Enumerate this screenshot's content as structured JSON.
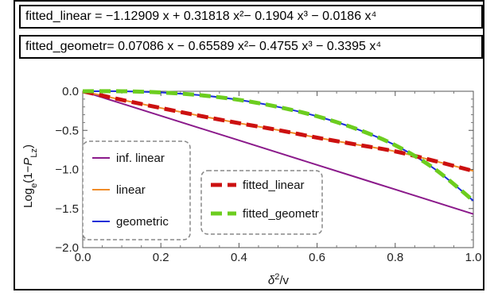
{
  "equations": {
    "linear": "fitted_linear = −1.12909 x + 0.31818 x²− 0.1904 x³ − 0.0186 x⁴",
    "geometr": "fitted_geometr= 0.07086 x − 0.65589 x²− 0.4755 x³ − 0.3395 x⁴"
  },
  "chart_data": {
    "type": "line",
    "title": "",
    "xlabel": "δ²/v",
    "ylabel": "Log_e(1−P_Lz)",
    "xlim": [
      0,
      1
    ],
    "ylim": [
      -2,
      0
    ],
    "xticks": [
      "0.0",
      "0.2",
      "0.4",
      "0.6",
      "0.8",
      "1.0"
    ],
    "yticks": [
      "0.0",
      "−0.5",
      "−1.0",
      "−1.5",
      "−2.0"
    ],
    "grid": false,
    "x": [
      0,
      0.1,
      0.2,
      0.3,
      0.4,
      0.5,
      0.6,
      0.7,
      0.8,
      0.9,
      1.0
    ],
    "series": [
      {
        "name": "inf. linear",
        "color": "#8b1a8b",
        "style": "solid",
        "values": [
          0,
          -0.157,
          -0.314,
          -0.471,
          -0.628,
          -0.785,
          -0.942,
          -1.099,
          -1.256,
          -1.413,
          -1.57
        ]
      },
      {
        "name": "linear",
        "color": "#f08c28",
        "style": "solid",
        "values": [
          0,
          -0.11,
          -0.214,
          -0.314,
          -0.408,
          -0.496,
          -0.593,
          -0.681,
          -0.769,
          -0.89,
          -1.02
        ]
      },
      {
        "name": "geometric",
        "color": "#1a2fd8",
        "style": "solid",
        "values": [
          0,
          0.0006,
          -0.015,
          -0.05,
          -0.11,
          -0.2,
          -0.32,
          -0.48,
          -0.69,
          -0.99,
          -1.4
        ]
      },
      {
        "name": "fitted_linear",
        "color": "#cc1010",
        "style": "dashed",
        "values": [
          0,
          -0.11,
          -0.214,
          -0.314,
          -0.408,
          -0.496,
          -0.593,
          -0.681,
          -0.769,
          -0.89,
          -1.02
        ]
      },
      {
        "name": "fitted_geometr",
        "color": "#6ccd1f",
        "style": "dashed",
        "values": [
          0,
          0.0006,
          -0.015,
          -0.05,
          -0.11,
          -0.2,
          -0.32,
          -0.48,
          -0.69,
          -0.99,
          -1.4
        ]
      }
    ],
    "legends": [
      {
        "id": "left",
        "placement": "bottom-left",
        "entries": [
          "inf. linear",
          "linear",
          "geometric"
        ]
      },
      {
        "id": "right",
        "placement": "bottom-center",
        "entries": [
          "fitted_linear",
          "fitted_geometr"
        ]
      }
    ]
  }
}
